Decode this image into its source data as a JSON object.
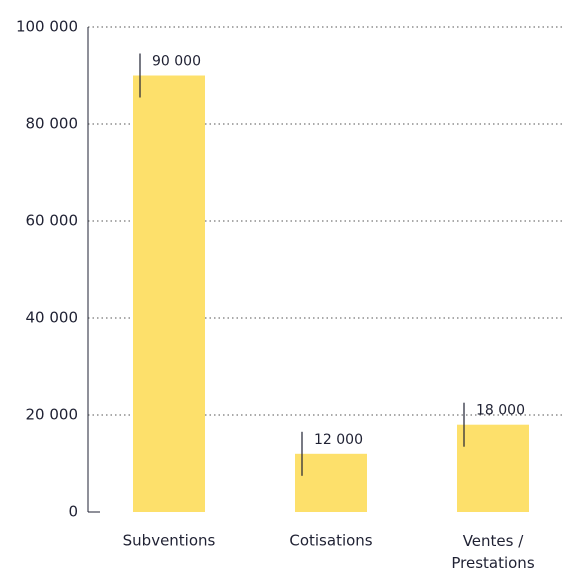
{
  "chart_data": {
    "type": "bar",
    "categories": [
      "Subventions",
      "Cotisations",
      "Ventes / Prestations"
    ],
    "values": [
      90000,
      12000,
      18000
    ],
    "value_labels": [
      "90 000",
      "12 000",
      "18 000"
    ],
    "color": "#fde06b",
    "ylim": [
      0,
      100000
    ],
    "yticks": [
      {
        "value": 0,
        "label": "0"
      },
      {
        "value": 20000,
        "label": "20 000"
      },
      {
        "value": 40000,
        "label": "40 000"
      },
      {
        "value": 60000,
        "label": "60 000"
      },
      {
        "value": 80000,
        "label": "80 000"
      },
      {
        "value": 100000,
        "label": "100 000"
      }
    ],
    "grid": true
  }
}
